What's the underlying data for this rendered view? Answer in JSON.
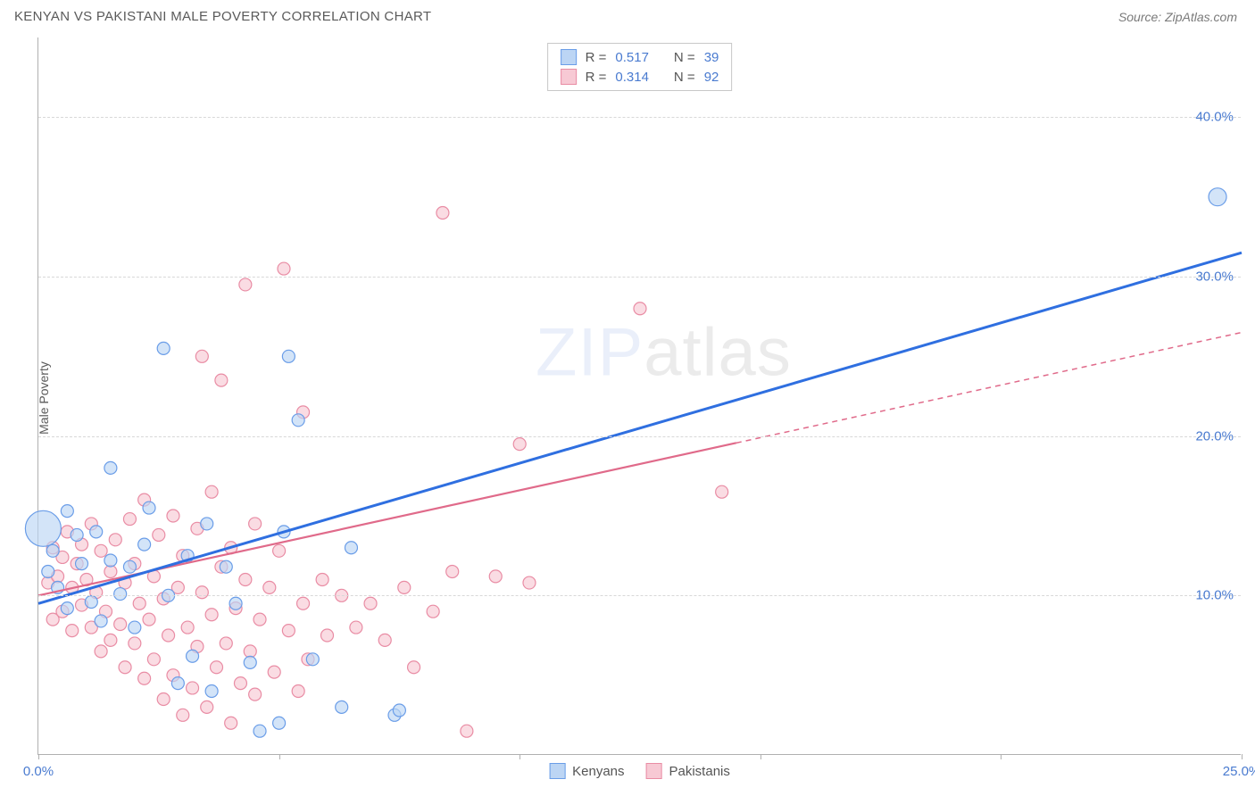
{
  "header": {
    "title": "KENYAN VS PAKISTANI MALE POVERTY CORRELATION CHART",
    "source": "Source: ZipAtlas.com"
  },
  "axes": {
    "y_label": "Male Poverty",
    "xlim": [
      0,
      25
    ],
    "ylim": [
      0,
      45
    ],
    "x_ticks": [
      0,
      5,
      10,
      15,
      20,
      25
    ],
    "x_tick_labels": [
      "0.0%",
      "",
      "",
      "",
      "",
      "25.0%"
    ],
    "y_gridlines": [
      10,
      20,
      30,
      40
    ],
    "y_tick_labels": [
      "10.0%",
      "20.0%",
      "30.0%",
      "40.0%"
    ],
    "grid_color": "#d8d8d8",
    "axis_color": "#b0b0b0",
    "tick_label_color": "#4a7bd0"
  },
  "watermark": {
    "zip": "ZIP",
    "atlas": "atlas"
  },
  "series": {
    "kenyans": {
      "label": "Kenyans",
      "fill": "#bcd5f4",
      "stroke": "#6a9de8",
      "line_color": "#2f6fe0",
      "r_value": "0.517",
      "n_value": "39",
      "trend": {
        "x1": 0,
        "y1": 9.5,
        "x2": 25,
        "y2": 31.5,
        "solid_until_x": 25
      },
      "points": [
        {
          "x": 0.1,
          "y": 14.2,
          "r": 20
        },
        {
          "x": 0.2,
          "y": 11.5,
          "r": 7
        },
        {
          "x": 0.3,
          "y": 12.8,
          "r": 7
        },
        {
          "x": 0.4,
          "y": 10.5,
          "r": 7
        },
        {
          "x": 0.6,
          "y": 9.2,
          "r": 7
        },
        {
          "x": 0.6,
          "y": 15.3,
          "r": 7
        },
        {
          "x": 0.8,
          "y": 13.8,
          "r": 7
        },
        {
          "x": 0.9,
          "y": 12.0,
          "r": 7
        },
        {
          "x": 1.1,
          "y": 9.6,
          "r": 7
        },
        {
          "x": 1.2,
          "y": 14.0,
          "r": 7
        },
        {
          "x": 1.3,
          "y": 8.4,
          "r": 7
        },
        {
          "x": 1.5,
          "y": 12.2,
          "r": 7
        },
        {
          "x": 1.5,
          "y": 18.0,
          "r": 7
        },
        {
          "x": 1.7,
          "y": 10.1,
          "r": 7
        },
        {
          "x": 1.9,
          "y": 11.8,
          "r": 7
        },
        {
          "x": 2.0,
          "y": 8.0,
          "r": 7
        },
        {
          "x": 2.2,
          "y": 13.2,
          "r": 7
        },
        {
          "x": 2.3,
          "y": 15.5,
          "r": 7
        },
        {
          "x": 2.6,
          "y": 25.5,
          "r": 7
        },
        {
          "x": 2.7,
          "y": 10.0,
          "r": 7
        },
        {
          "x": 2.9,
          "y": 4.5,
          "r": 7
        },
        {
          "x": 3.1,
          "y": 12.5,
          "r": 7
        },
        {
          "x": 3.2,
          "y": 6.2,
          "r": 7
        },
        {
          "x": 3.5,
          "y": 14.5,
          "r": 7
        },
        {
          "x": 3.6,
          "y": 4.0,
          "r": 7
        },
        {
          "x": 3.9,
          "y": 11.8,
          "r": 7
        },
        {
          "x": 4.1,
          "y": 9.5,
          "r": 7
        },
        {
          "x": 4.4,
          "y": 5.8,
          "r": 7
        },
        {
          "x": 4.6,
          "y": 1.5,
          "r": 7
        },
        {
          "x": 5.0,
          "y": 2.0,
          "r": 7
        },
        {
          "x": 5.1,
          "y": 14.0,
          "r": 7
        },
        {
          "x": 5.2,
          "y": 25.0,
          "r": 7
        },
        {
          "x": 5.4,
          "y": 21.0,
          "r": 7
        },
        {
          "x": 5.7,
          "y": 6.0,
          "r": 7
        },
        {
          "x": 6.3,
          "y": 3.0,
          "r": 7
        },
        {
          "x": 6.5,
          "y": 13.0,
          "r": 7
        },
        {
          "x": 7.4,
          "y": 2.5,
          "r": 7
        },
        {
          "x": 7.5,
          "y": 2.8,
          "r": 7
        },
        {
          "x": 24.5,
          "y": 35.0,
          "r": 10
        }
      ]
    },
    "pakistanis": {
      "label": "Pakistanis",
      "fill": "#f7c9d4",
      "stroke": "#e98ca4",
      "line_color": "#e06a8a",
      "r_value": "0.314",
      "n_value": "92",
      "trend": {
        "x1": 0,
        "y1": 10.0,
        "x2": 25,
        "y2": 26.5,
        "solid_until_x": 14.5
      },
      "points": [
        {
          "x": 0.2,
          "y": 10.8,
          "r": 7
        },
        {
          "x": 0.3,
          "y": 13.0,
          "r": 7
        },
        {
          "x": 0.3,
          "y": 8.5,
          "r": 7
        },
        {
          "x": 0.4,
          "y": 11.2,
          "r": 7
        },
        {
          "x": 0.5,
          "y": 12.4,
          "r": 7
        },
        {
          "x": 0.5,
          "y": 9.0,
          "r": 7
        },
        {
          "x": 0.6,
          "y": 14.0,
          "r": 7
        },
        {
          "x": 0.7,
          "y": 10.5,
          "r": 7
        },
        {
          "x": 0.7,
          "y": 7.8,
          "r": 7
        },
        {
          "x": 0.8,
          "y": 12.0,
          "r": 7
        },
        {
          "x": 0.9,
          "y": 13.2,
          "r": 7
        },
        {
          "x": 0.9,
          "y": 9.4,
          "r": 7
        },
        {
          "x": 1.0,
          "y": 11.0,
          "r": 7
        },
        {
          "x": 1.1,
          "y": 8.0,
          "r": 7
        },
        {
          "x": 1.1,
          "y": 14.5,
          "r": 7
        },
        {
          "x": 1.2,
          "y": 10.2,
          "r": 7
        },
        {
          "x": 1.3,
          "y": 6.5,
          "r": 7
        },
        {
          "x": 1.3,
          "y": 12.8,
          "r": 7
        },
        {
          "x": 1.4,
          "y": 9.0,
          "r": 7
        },
        {
          "x": 1.5,
          "y": 7.2,
          "r": 7
        },
        {
          "x": 1.5,
          "y": 11.5,
          "r": 7
        },
        {
          "x": 1.6,
          "y": 13.5,
          "r": 7
        },
        {
          "x": 1.7,
          "y": 8.2,
          "r": 7
        },
        {
          "x": 1.8,
          "y": 5.5,
          "r": 7
        },
        {
          "x": 1.8,
          "y": 10.8,
          "r": 7
        },
        {
          "x": 1.9,
          "y": 14.8,
          "r": 7
        },
        {
          "x": 2.0,
          "y": 7.0,
          "r": 7
        },
        {
          "x": 2.0,
          "y": 12.0,
          "r": 7
        },
        {
          "x": 2.1,
          "y": 9.5,
          "r": 7
        },
        {
          "x": 2.2,
          "y": 4.8,
          "r": 7
        },
        {
          "x": 2.2,
          "y": 16.0,
          "r": 7
        },
        {
          "x": 2.3,
          "y": 8.5,
          "r": 7
        },
        {
          "x": 2.4,
          "y": 6.0,
          "r": 7
        },
        {
          "x": 2.4,
          "y": 11.2,
          "r": 7
        },
        {
          "x": 2.5,
          "y": 13.8,
          "r": 7
        },
        {
          "x": 2.6,
          "y": 3.5,
          "r": 7
        },
        {
          "x": 2.6,
          "y": 9.8,
          "r": 7
        },
        {
          "x": 2.7,
          "y": 7.5,
          "r": 7
        },
        {
          "x": 2.8,
          "y": 15.0,
          "r": 7
        },
        {
          "x": 2.8,
          "y": 5.0,
          "r": 7
        },
        {
          "x": 2.9,
          "y": 10.5,
          "r": 7
        },
        {
          "x": 3.0,
          "y": 2.5,
          "r": 7
        },
        {
          "x": 3.0,
          "y": 12.5,
          "r": 7
        },
        {
          "x": 3.1,
          "y": 8.0,
          "r": 7
        },
        {
          "x": 3.2,
          "y": 4.2,
          "r": 7
        },
        {
          "x": 3.3,
          "y": 14.2,
          "r": 7
        },
        {
          "x": 3.3,
          "y": 6.8,
          "r": 7
        },
        {
          "x": 3.4,
          "y": 25.0,
          "r": 7
        },
        {
          "x": 3.4,
          "y": 10.2,
          "r": 7
        },
        {
          "x": 3.5,
          "y": 3.0,
          "r": 7
        },
        {
          "x": 3.6,
          "y": 16.5,
          "r": 7
        },
        {
          "x": 3.6,
          "y": 8.8,
          "r": 7
        },
        {
          "x": 3.7,
          "y": 5.5,
          "r": 7
        },
        {
          "x": 3.8,
          "y": 23.5,
          "r": 7
        },
        {
          "x": 3.8,
          "y": 11.8,
          "r": 7
        },
        {
          "x": 3.9,
          "y": 7.0,
          "r": 7
        },
        {
          "x": 4.0,
          "y": 2.0,
          "r": 7
        },
        {
          "x": 4.0,
          "y": 13.0,
          "r": 7
        },
        {
          "x": 4.1,
          "y": 9.2,
          "r": 7
        },
        {
          "x": 4.2,
          "y": 4.5,
          "r": 7
        },
        {
          "x": 4.3,
          "y": 29.5,
          "r": 7
        },
        {
          "x": 4.3,
          "y": 11.0,
          "r": 7
        },
        {
          "x": 4.4,
          "y": 6.5,
          "r": 7
        },
        {
          "x": 4.5,
          "y": 3.8,
          "r": 7
        },
        {
          "x": 4.5,
          "y": 14.5,
          "r": 7
        },
        {
          "x": 4.6,
          "y": 8.5,
          "r": 7
        },
        {
          "x": 4.8,
          "y": 10.5,
          "r": 7
        },
        {
          "x": 4.9,
          "y": 5.2,
          "r": 7
        },
        {
          "x": 5.0,
          "y": 12.8,
          "r": 7
        },
        {
          "x": 5.1,
          "y": 30.5,
          "r": 7
        },
        {
          "x": 5.2,
          "y": 7.8,
          "r": 7
        },
        {
          "x": 5.4,
          "y": 4.0,
          "r": 7
        },
        {
          "x": 5.5,
          "y": 21.5,
          "r": 7
        },
        {
          "x": 5.5,
          "y": 9.5,
          "r": 7
        },
        {
          "x": 5.6,
          "y": 6.0,
          "r": 7
        },
        {
          "x": 5.9,
          "y": 11.0,
          "r": 7
        },
        {
          "x": 6.0,
          "y": 7.5,
          "r": 7
        },
        {
          "x": 6.3,
          "y": 10.0,
          "r": 7
        },
        {
          "x": 6.6,
          "y": 8.0,
          "r": 7
        },
        {
          "x": 6.9,
          "y": 9.5,
          "r": 7
        },
        {
          "x": 7.2,
          "y": 7.2,
          "r": 7
        },
        {
          "x": 7.6,
          "y": 10.5,
          "r": 7
        },
        {
          "x": 7.8,
          "y": 5.5,
          "r": 7
        },
        {
          "x": 8.2,
          "y": 9.0,
          "r": 7
        },
        {
          "x": 8.4,
          "y": 34.0,
          "r": 7
        },
        {
          "x": 8.6,
          "y": 11.5,
          "r": 7
        },
        {
          "x": 8.9,
          "y": 1.5,
          "r": 7
        },
        {
          "x": 9.5,
          "y": 11.2,
          "r": 7
        },
        {
          "x": 10.0,
          "y": 19.5,
          "r": 7
        },
        {
          "x": 10.2,
          "y": 10.8,
          "r": 7
        },
        {
          "x": 12.5,
          "y": 28.0,
          "r": 7
        },
        {
          "x": 14.2,
          "y": 16.5,
          "r": 7
        }
      ]
    }
  },
  "stat_box": {
    "r_label": "R =",
    "n_label": "N ="
  },
  "legend": {
    "items": [
      "kenyans",
      "pakistanis"
    ]
  }
}
